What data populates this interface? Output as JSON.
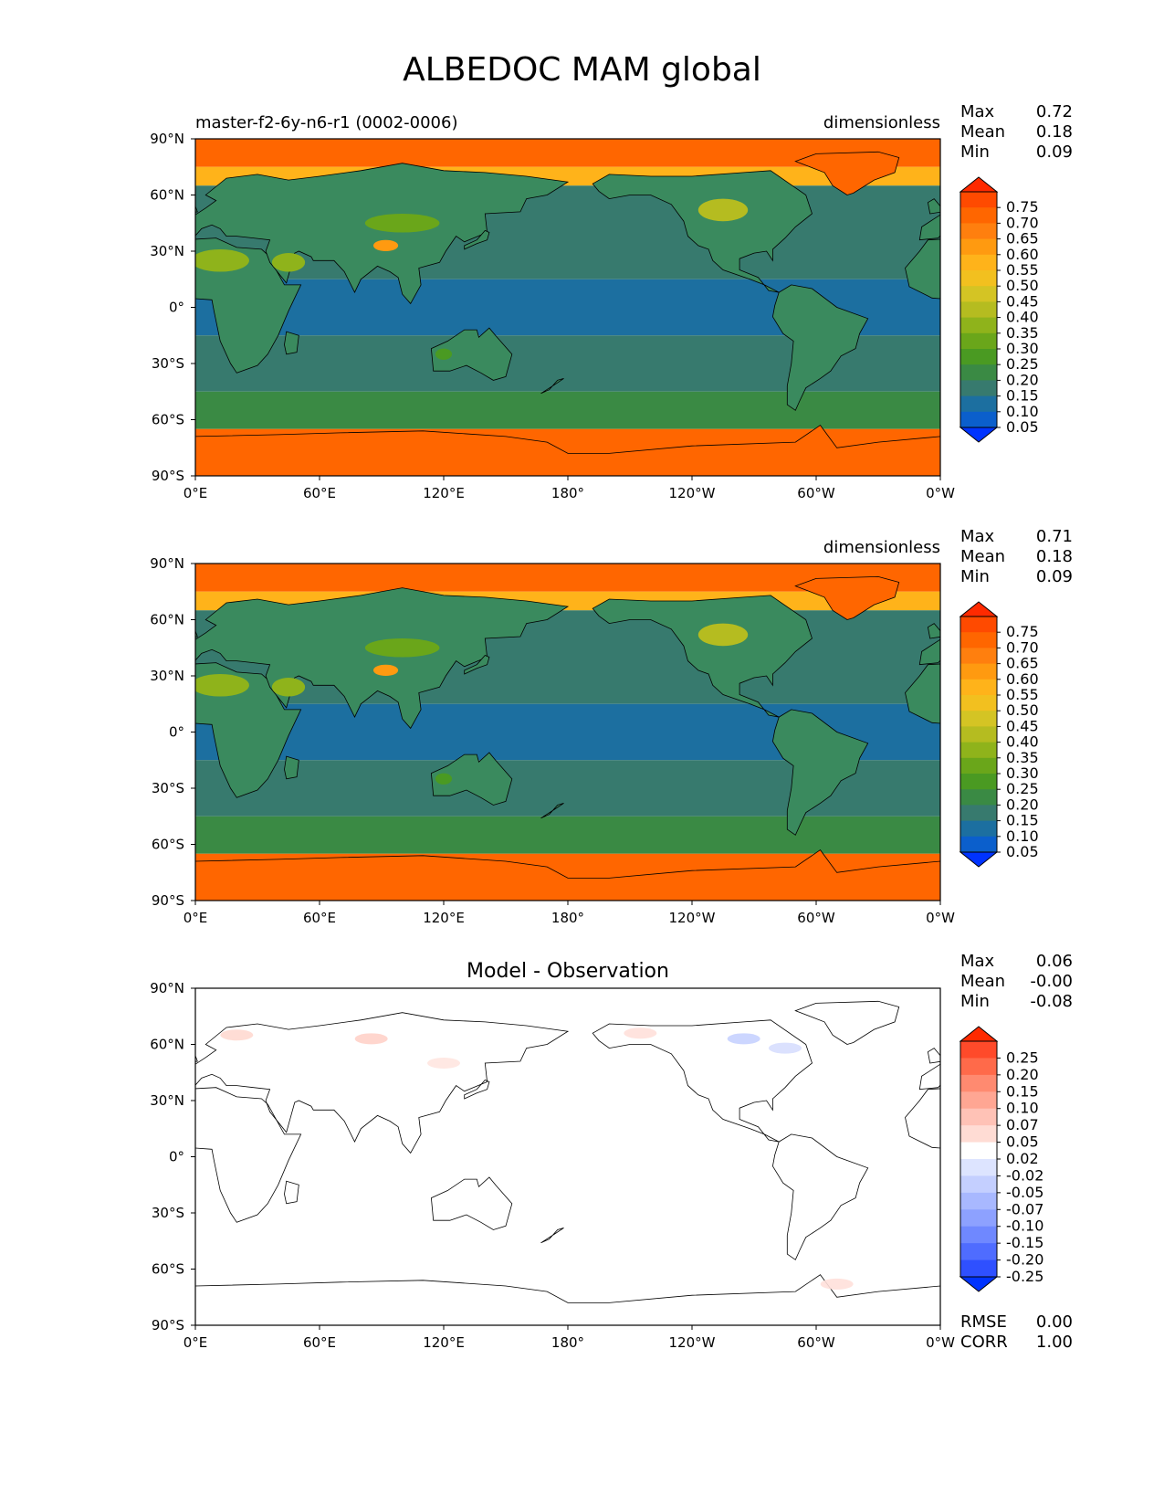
{
  "title": "ALBEDOC MAM global",
  "panels": [
    {
      "id": "model",
      "left_title": "master-f2-6y-n6-r1 (0002-0006)",
      "center_title": "",
      "units": "dimensionless",
      "stats": [
        {
          "label": "Max",
          "value": "0.72"
        },
        {
          "label": "Mean",
          "value": "0.18"
        },
        {
          "label": "Min",
          "value": "0.09"
        }
      ],
      "bottom_stats": [],
      "colorbar": {
        "labels": [
          "0.75",
          "0.70",
          "0.65",
          "0.60",
          "0.55",
          "0.50",
          "0.45",
          "0.40",
          "0.35",
          "0.30",
          "0.25",
          "0.20",
          "0.15",
          "0.10",
          "0.05"
        ],
        "colors": [
          "#ff2a00",
          "#ff4a00",
          "#ff6600",
          "#ff7f0e",
          "#ff9a10",
          "#ffb31a",
          "#f2c01f",
          "#d4c424",
          "#b5bc20",
          "#8fb31b",
          "#6aa61a",
          "#4a9a22",
          "#3a8a44",
          "#377a6e",
          "#1c6fa0",
          "#0b5fcc",
          "#0033ff"
        ],
        "top_color": "#ff2a00",
        "bottom_color": "#0033ff"
      },
      "chart_data": {
        "type": "heatmap",
        "variable": "ALBEDOC",
        "units": "dimensionless",
        "x_ticks": [
          "0°E",
          "60°E",
          "120°E",
          "180°",
          "120°W",
          "60°W",
          "0°W"
        ],
        "y_ticks": [
          "90°N",
          "60°N",
          "30°N",
          "0°",
          "30°S",
          "60°S",
          "90°S"
        ],
        "xlim": [
          0,
          360
        ],
        "ylim": [
          -90,
          90
        ],
        "zonal_bands": [
          {
            "lat_min": 75,
            "lat_max": 90,
            "value": 0.68
          },
          {
            "lat_min": 65,
            "lat_max": 75,
            "value": 0.55
          },
          {
            "lat_min": 15,
            "lat_max": 65,
            "value": 0.15
          },
          {
            "lat_min": -15,
            "lat_max": 15,
            "value": 0.09
          },
          {
            "lat_min": -45,
            "lat_max": -15,
            "value": 0.15
          },
          {
            "lat_min": -65,
            "lat_max": -45,
            "value": 0.2
          },
          {
            "lat_min": -90,
            "lat_max": -65,
            "value": 0.68
          }
        ]
      }
    },
    {
      "id": "observation",
      "left_title": "",
      "center_title": "",
      "units": "dimensionless",
      "stats": [
        {
          "label": "Max",
          "value": "0.71"
        },
        {
          "label": "Mean",
          "value": "0.18"
        },
        {
          "label": "Min",
          "value": "0.09"
        }
      ],
      "bottom_stats": [],
      "colorbar": {
        "labels": [
          "0.75",
          "0.70",
          "0.65",
          "0.60",
          "0.55",
          "0.50",
          "0.45",
          "0.40",
          "0.35",
          "0.30",
          "0.25",
          "0.20",
          "0.15",
          "0.10",
          "0.05"
        ],
        "colors": [
          "#ff2a00",
          "#ff4a00",
          "#ff6600",
          "#ff7f0e",
          "#ff9a10",
          "#ffb31a",
          "#f2c01f",
          "#d4c424",
          "#b5bc20",
          "#8fb31b",
          "#6aa61a",
          "#4a9a22",
          "#3a8a44",
          "#377a6e",
          "#1c6fa0",
          "#0b5fcc",
          "#0033ff"
        ],
        "top_color": "#ff2a00",
        "bottom_color": "#0033ff"
      },
      "chart_data": {
        "type": "heatmap",
        "variable": "ALBEDOC",
        "units": "dimensionless",
        "x_ticks": [
          "0°E",
          "60°E",
          "120°E",
          "180°",
          "120°W",
          "60°W",
          "0°W"
        ],
        "y_ticks": [
          "90°N",
          "60°N",
          "30°N",
          "0°",
          "30°S",
          "60°S",
          "90°S"
        ],
        "xlim": [
          0,
          360
        ],
        "ylim": [
          -90,
          90
        ],
        "zonal_bands": [
          {
            "lat_min": 75,
            "lat_max": 90,
            "value": 0.68
          },
          {
            "lat_min": 65,
            "lat_max": 75,
            "value": 0.55
          },
          {
            "lat_min": 15,
            "lat_max": 65,
            "value": 0.15
          },
          {
            "lat_min": -15,
            "lat_max": 15,
            "value": 0.09
          },
          {
            "lat_min": -45,
            "lat_max": -15,
            "value": 0.15
          },
          {
            "lat_min": -65,
            "lat_max": -45,
            "value": 0.2
          },
          {
            "lat_min": -90,
            "lat_max": -65,
            "value": 0.68
          }
        ]
      }
    },
    {
      "id": "difference",
      "left_title": "",
      "center_title": "Model - Observation",
      "units": "",
      "stats": [
        {
          "label": "Max",
          "value": "0.06"
        },
        {
          "label": "Mean",
          "value": "-0.00"
        },
        {
          "label": "Min",
          "value": "-0.08"
        }
      ],
      "bottom_stats": [
        {
          "label": "RMSE",
          "value": "0.00"
        },
        {
          "label": "CORR",
          "value": "1.00"
        }
      ],
      "colorbar": {
        "labels": [
          "0.25",
          "0.20",
          "0.15",
          "0.10",
          "0.07",
          "0.05",
          "0.02",
          "-0.02",
          "-0.05",
          "-0.07",
          "-0.10",
          "-0.15",
          "-0.20",
          "-0.25"
        ],
        "colors": [
          "#ff2a00",
          "#ff4a2a",
          "#ff6a4a",
          "#ff8a70",
          "#ffa693",
          "#ffc2b6",
          "#ffdcd4",
          "#ffffff",
          "#dde4ff",
          "#c4cfff",
          "#a8b8ff",
          "#8da1ff",
          "#6f88ff",
          "#4f6cff",
          "#2f50ff",
          "#0033ff"
        ],
        "top_color": "#ff2a00",
        "bottom_color": "#0033ff"
      },
      "chart_data": {
        "type": "heatmap",
        "variable": "ALBEDOC difference",
        "x_ticks": [
          "0°E",
          "60°E",
          "120°E",
          "180°",
          "120°W",
          "60°W",
          "0°W"
        ],
        "y_ticks": [
          "90°N",
          "60°N",
          "30°N",
          "0°",
          "30°S",
          "60°S",
          "90°S"
        ],
        "xlim": [
          0,
          360
        ],
        "ylim": [
          -90,
          90
        ],
        "value_range": [
          -0.08,
          0.06
        ]
      }
    }
  ]
}
